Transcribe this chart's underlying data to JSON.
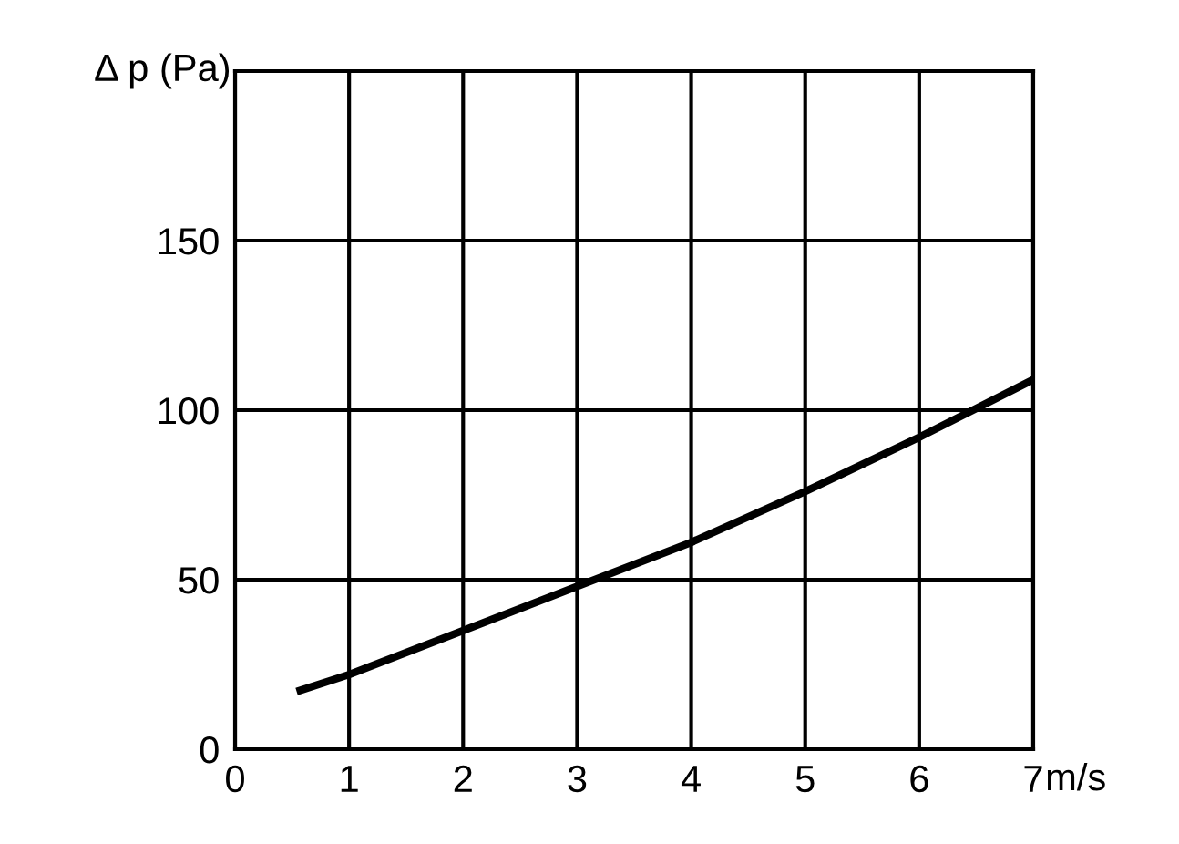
{
  "chart_data": {
    "type": "line",
    "ylabel": "Δ p (Pa)",
    "xlabel": "m/s",
    "x": [
      0.54,
      1,
      2,
      3,
      4,
      5,
      6,
      7
    ],
    "series": [
      {
        "color": "#000000",
        "values": [
          17,
          22,
          35,
          48,
          61,
          76,
          92,
          109
        ]
      }
    ],
    "xlim": [
      0,
      7
    ],
    "xticks": [
      0,
      1,
      2,
      3,
      4,
      5,
      6,
      7
    ],
    "ylim": [
      0,
      200
    ],
    "yticks": [
      0,
      50,
      100,
      150,
      {
        "value": 200,
        "label": null
      }
    ],
    "grid": true,
    "marker": "none",
    "line_style": "solid",
    "legend": false
  }
}
